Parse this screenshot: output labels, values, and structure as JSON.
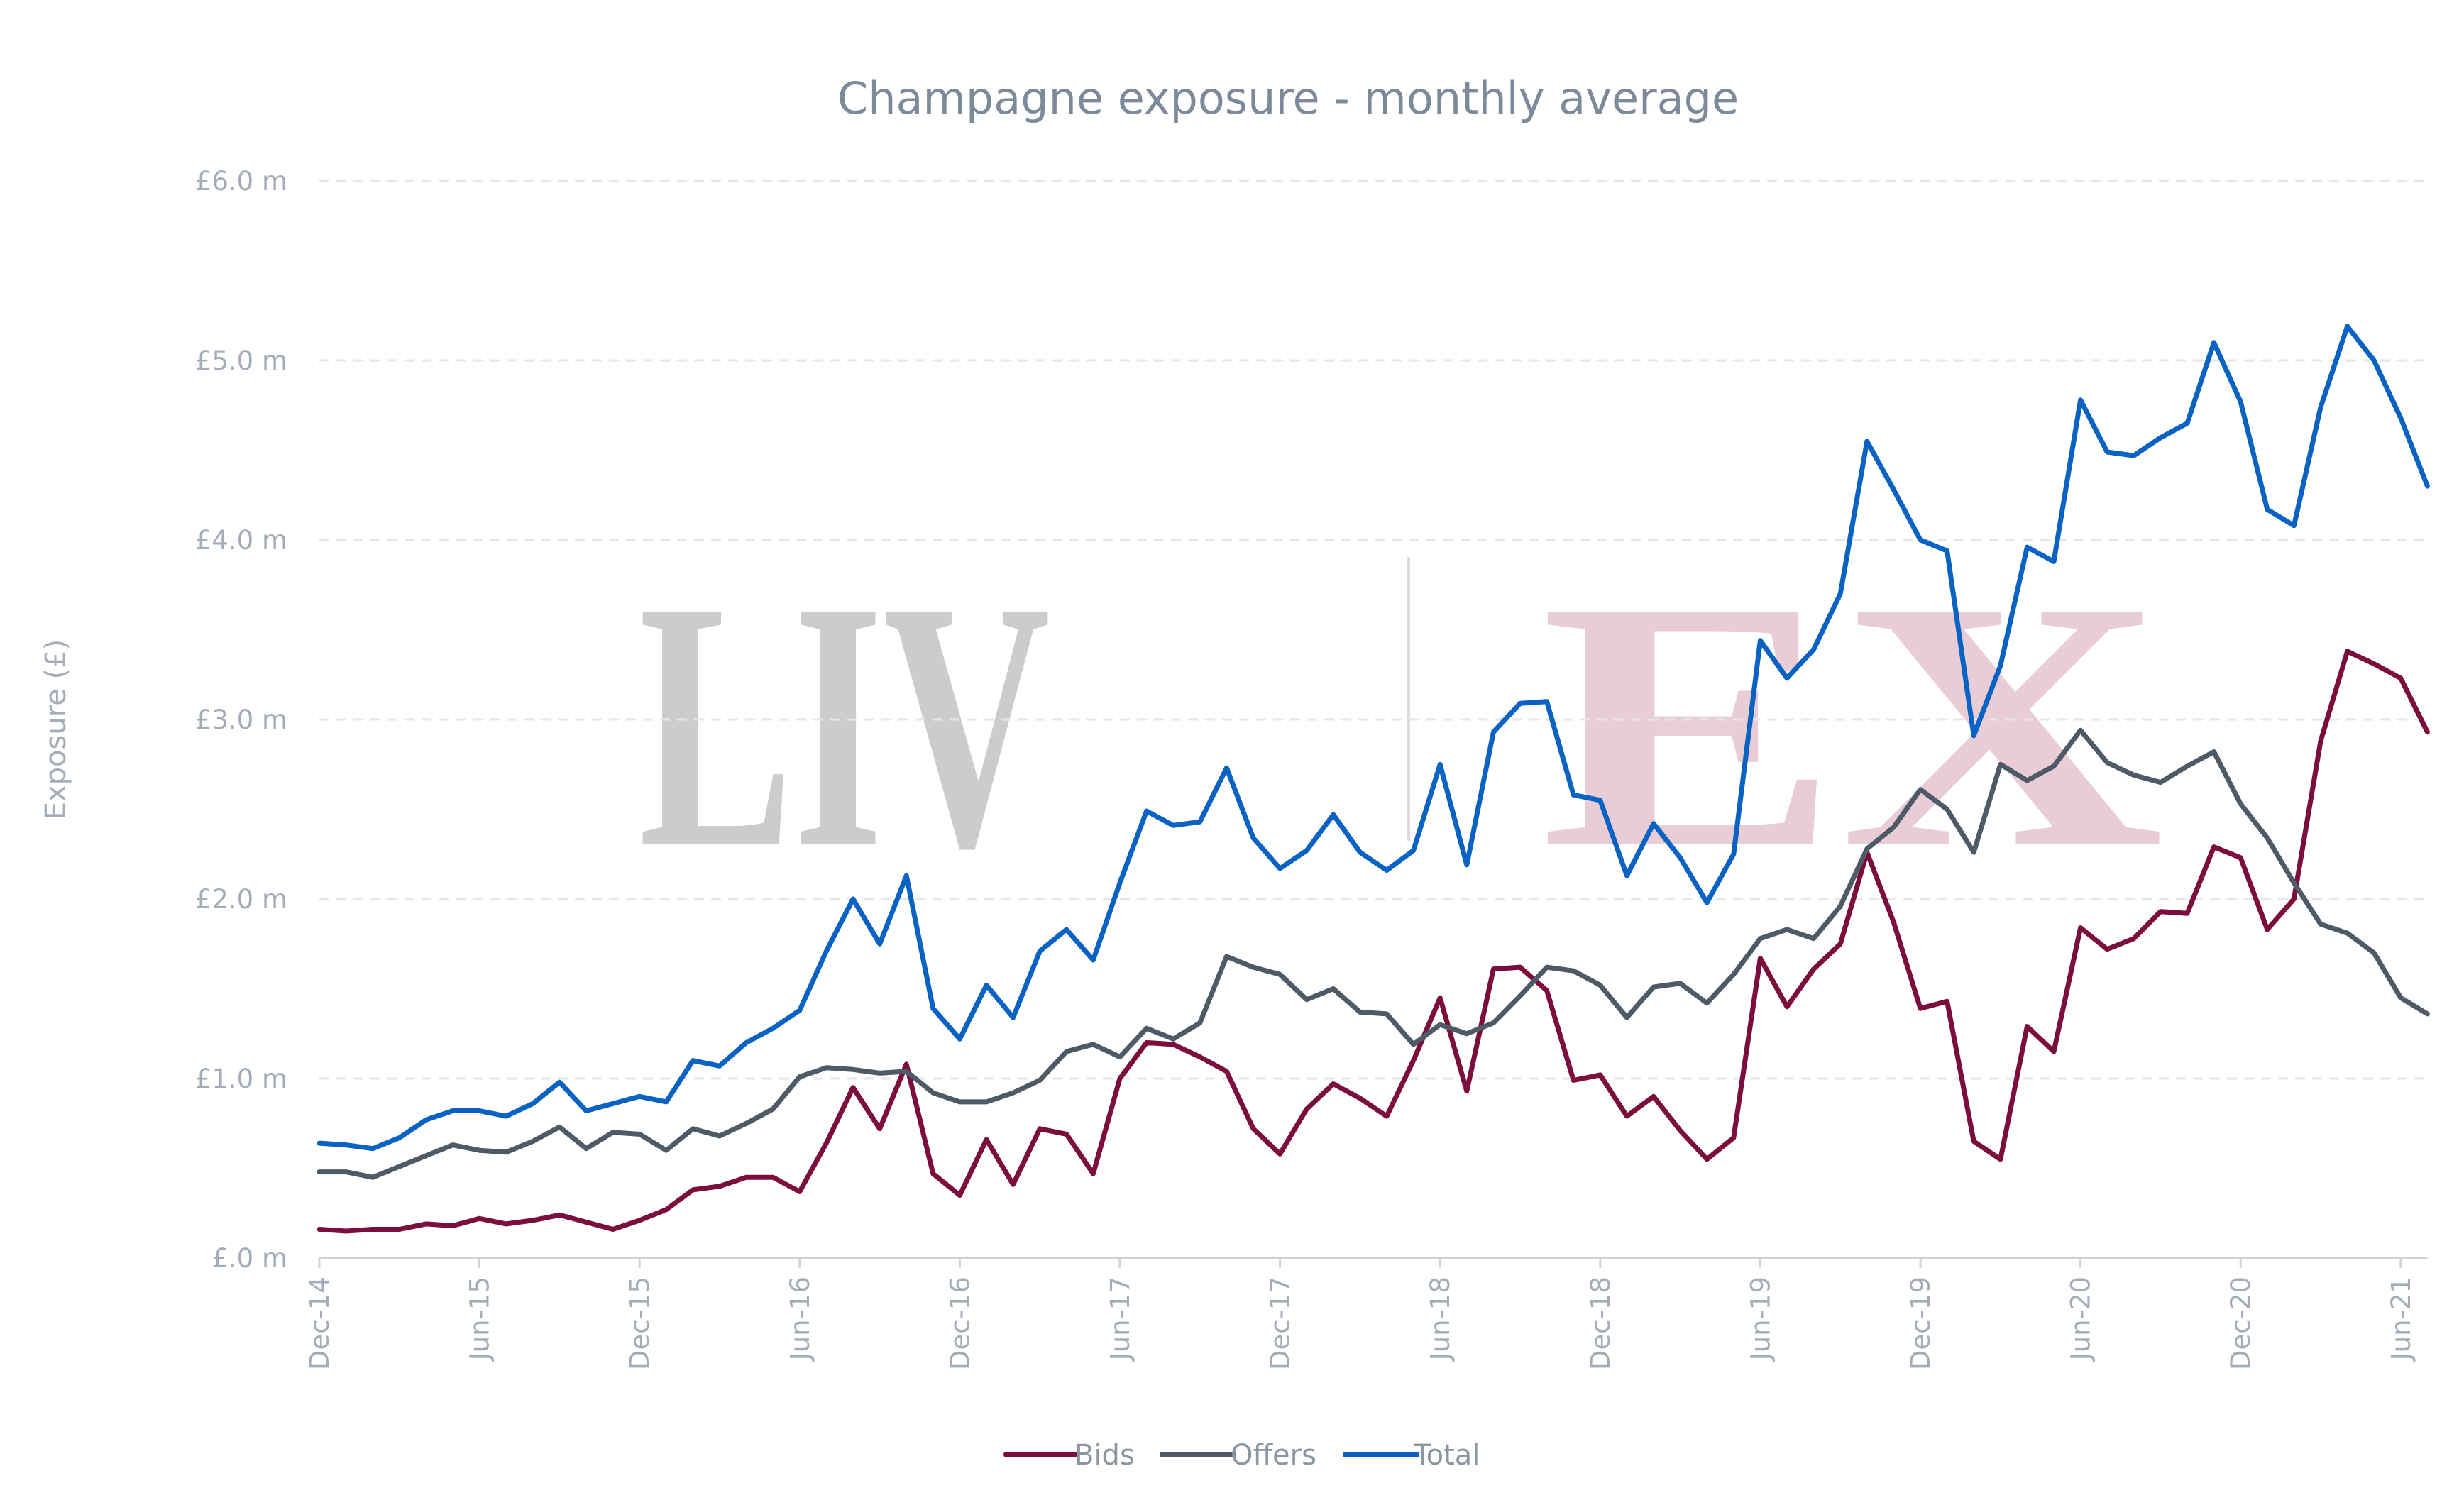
{
  "watermark": {
    "left": "LIV",
    "right": "EX",
    "left_color": "#cccccc",
    "right_color": "#e8ccd6"
  },
  "chart_data": {
    "type": "line",
    "title": "Champagne exposure - monthly average",
    "xlabel": "",
    "ylabel": "Exposure (£)",
    "ylim": [
      0,
      6
    ],
    "yticks": [
      0,
      1,
      2,
      3,
      4,
      5,
      6
    ],
    "ytick_labels": [
      "£.0 m",
      "£1.0 m",
      "£2.0 m",
      "£3.0 m",
      "£4.0 m",
      "£5.0 m",
      "£6.0 m"
    ],
    "x": [
      "Dec-14",
      "Jan-15",
      "Feb-15",
      "Mar-15",
      "Apr-15",
      "May-15",
      "Jun-15",
      "Jul-15",
      "Aug-15",
      "Sep-15",
      "Oct-15",
      "Nov-15",
      "Dec-15",
      "Jan-16",
      "Feb-16",
      "Mar-16",
      "Apr-16",
      "May-16",
      "Jun-16",
      "Jul-16",
      "Aug-16",
      "Sep-16",
      "Oct-16",
      "Nov-16",
      "Dec-16",
      "Jan-17",
      "Feb-17",
      "Mar-17",
      "Apr-17",
      "May-17",
      "Jun-17",
      "Jul-17",
      "Aug-17",
      "Sep-17",
      "Oct-17",
      "Nov-17",
      "Dec-17",
      "Jan-18",
      "Feb-18",
      "Mar-18",
      "Apr-18",
      "May-18",
      "Jun-18",
      "Jul-18",
      "Aug-18",
      "Sep-18",
      "Oct-18",
      "Nov-18",
      "Dec-18",
      "Jan-19",
      "Feb-19",
      "Mar-19",
      "Apr-19",
      "May-19",
      "Jun-19",
      "Jul-19",
      "Aug-19",
      "Sep-19",
      "Oct-19",
      "Nov-19",
      "Dec-19",
      "Jan-20",
      "Feb-20",
      "Mar-20",
      "Apr-20",
      "May-20",
      "Jun-20",
      "Jul-20",
      "Aug-20",
      "Sep-20",
      "Oct-20",
      "Nov-20",
      "Dec-20",
      "Jan-21",
      "Feb-21",
      "Mar-21",
      "Apr-21",
      "May-21",
      "Jun-21",
      "Jul-21"
    ],
    "xtick_labels": [
      "Dec-14",
      "Jun-15",
      "Dec-15",
      "Jun-16",
      "Dec-16",
      "Jun-17",
      "Dec-17",
      "Jun-18",
      "Dec-18",
      "Jun-19",
      "Dec-19",
      "Jun-20",
      "Dec-20",
      "Jun-21"
    ],
    "grid": "horizontal dashed",
    "legend_position": "bottom-center",
    "series": [
      {
        "name": "Bids",
        "color": "#7b0e3c",
        "values": [
          0.16,
          0.15,
          0.16,
          0.16,
          0.19,
          0.18,
          0.22,
          0.19,
          0.21,
          0.24,
          0.2,
          0.16,
          0.21,
          0.27,
          0.38,
          0.4,
          0.45,
          0.45,
          0.37,
          0.64,
          0.95,
          0.72,
          1.08,
          0.47,
          0.35,
          0.66,
          0.41,
          0.72,
          0.69,
          0.47,
          1.0,
          1.2,
          1.19,
          1.12,
          1.04,
          0.72,
          0.58,
          0.83,
          0.97,
          0.89,
          0.79,
          1.1,
          1.45,
          0.93,
          1.61,
          1.62,
          1.49,
          0.99,
          1.02,
          0.79,
          0.9,
          0.71,
          0.55,
          0.67,
          1.67,
          1.4,
          1.61,
          1.75,
          2.26,
          1.87,
          1.39,
          1.43,
          0.65,
          0.55,
          1.29,
          1.15,
          1.84,
          1.72,
          1.78,
          1.93,
          1.92,
          2.29,
          2.23,
          1.83,
          2.0,
          2.88,
          3.38,
          3.31,
          3.23,
          2.93
        ]
      },
      {
        "name": "Offers",
        "color": "#4e5a66",
        "values": [
          0.48,
          0.48,
          0.45,
          0.51,
          0.57,
          0.63,
          0.6,
          0.59,
          0.65,
          0.73,
          0.61,
          0.7,
          0.69,
          0.6,
          0.72,
          0.68,
          0.75,
          0.83,
          1.01,
          1.06,
          1.05,
          1.03,
          1.04,
          0.92,
          0.87,
          0.87,
          0.92,
          0.99,
          1.15,
          1.19,
          1.12,
          1.28,
          1.22,
          1.31,
          1.68,
          1.62,
          1.58,
          1.44,
          1.5,
          1.37,
          1.36,
          1.19,
          1.3,
          1.25,
          1.31,
          1.46,
          1.62,
          1.6,
          1.52,
          1.34,
          1.51,
          1.53,
          1.42,
          1.58,
          1.78,
          1.83,
          1.78,
          1.96,
          2.28,
          2.4,
          2.61,
          2.5,
          2.26,
          2.75,
          2.66,
          2.74,
          2.94,
          2.76,
          2.69,
          2.65,
          2.74,
          2.82,
          2.53,
          2.34,
          2.09,
          1.86,
          1.81,
          1.7,
          1.45,
          1.36
        ]
      },
      {
        "name": "Total",
        "color": "#0a63c2",
        "values": [
          0.64,
          0.63,
          0.61,
          0.67,
          0.77,
          0.82,
          0.82,
          0.79,
          0.86,
          0.98,
          0.82,
          0.86,
          0.9,
          0.87,
          1.1,
          1.07,
          1.2,
          1.28,
          1.38,
          1.71,
          2.0,
          1.75,
          2.13,
          1.39,
          1.22,
          1.52,
          1.34,
          1.71,
          1.83,
          1.66,
          2.09,
          2.49,
          2.41,
          2.43,
          2.73,
          2.34,
          2.17,
          2.27,
          2.47,
          2.26,
          2.16,
          2.27,
          2.75,
          2.19,
          2.93,
          3.09,
          3.1,
          2.58,
          2.55,
          2.13,
          2.42,
          2.23,
          1.98,
          2.25,
          3.44,
          3.23,
          3.39,
          3.7,
          4.55,
          4.28,
          4.0,
          3.94,
          2.91,
          3.3,
          3.96,
          3.88,
          4.78,
          4.49,
          4.47,
          4.57,
          4.65,
          5.1,
          4.77,
          4.17,
          4.08,
          4.74,
          5.19,
          5.0,
          4.68,
          4.3
        ]
      }
    ]
  }
}
